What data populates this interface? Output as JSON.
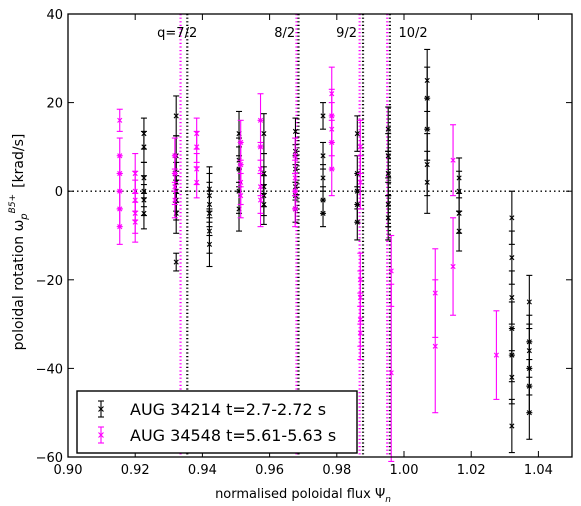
{
  "chart_data": {
    "type": "scatter",
    "xlabel": "normalised poloidal flux Ψ",
    "xlabel_sub": "n",
    "ylabel": "poloidal rotation ω",
    "ylabel_sub": "p",
    "ylabel_sup": "B5+",
    "ylabel_unit": "[krad/s]",
    "xlim": [
      0.9,
      1.05
    ],
    "ylim": [
      -60,
      40
    ],
    "xticks": [
      "0.90",
      "0.92",
      "0.94",
      "0.96",
      "0.98",
      "1.00",
      "1.02",
      "1.04"
    ],
    "xtick_values": [
      0.9,
      0.92,
      0.94,
      0.96,
      0.98,
      1.0,
      1.02,
      1.04
    ],
    "yticks": [
      "−60",
      "−40",
      "−20",
      "0",
      "20",
      "40"
    ],
    "ytick_values": [
      -60,
      -40,
      -20,
      0,
      20,
      40
    ],
    "legend_position": "bottom-left",
    "colors": {
      "black": "#000000",
      "magenta": "#ff00ff"
    },
    "zero_line": 0,
    "q_labels": [
      {
        "text": "q=7/2",
        "x": 0.9325
      },
      {
        "text": "8/2",
        "x": 0.9645
      },
      {
        "text": "9/2",
        "x": 0.9829
      },
      {
        "text": "10/2",
        "x": 1.0027
      }
    ],
    "q_surfaces": [
      {
        "series": "AUG 34548 t=5.61-5.63 s",
        "x": 0.9335
      },
      {
        "series": "AUG 34214 t=2.7-2.72 s",
        "x": 0.9355
      },
      {
        "series": "AUG 34548 t=5.61-5.63 s",
        "x": 0.968
      },
      {
        "series": "AUG 34214 t=2.7-2.72 s",
        "x": 0.9686
      },
      {
        "series": "AUG 34548 t=5.61-5.63 s",
        "x": 0.9868
      },
      {
        "series": "AUG 34214 t=2.7-2.72 s",
        "x": 0.9878
      },
      {
        "series": "AUG 34548 t=5.61-5.63 s",
        "x": 0.995
      },
      {
        "series": "AUG 34214 t=2.7-2.72 s",
        "x": 0.9958
      }
    ],
    "series": [
      {
        "name": "AUG 34214 t=2.7-2.72 s",
        "color": "#000000",
        "points": [
          [
            0.9226,
            13,
            3.5
          ],
          [
            0.9226,
            10,
            3.5
          ],
          [
            0.9226,
            3,
            3.5
          ],
          [
            0.9226,
            0,
            3.5
          ],
          [
            0.9226,
            -2,
            3.5
          ],
          [
            0.9226,
            -5,
            3.5
          ],
          [
            0.9322,
            17,
            4.5
          ],
          [
            0.9322,
            8,
            4.5
          ],
          [
            0.9322,
            2,
            4.5
          ],
          [
            0.9322,
            0,
            4.5
          ],
          [
            0.9322,
            -2,
            4.5
          ],
          [
            0.9322,
            -5,
            4.5
          ],
          [
            0.9322,
            -16,
            2
          ],
          [
            0.9421,
            -3,
            5
          ],
          [
            0.9421,
            -5,
            5
          ],
          [
            0.9421,
            -9,
            5
          ],
          [
            0.9421,
            -12,
            5
          ],
          [
            0.9421,
            -1,
            5
          ],
          [
            0.9421,
            0.5,
            5
          ],
          [
            0.9509,
            13,
            5
          ],
          [
            0.9509,
            7,
            5
          ],
          [
            0.9509,
            5,
            5
          ],
          [
            0.9509,
            0,
            5
          ],
          [
            0.9509,
            -4,
            5
          ],
          [
            0.9583,
            13,
            4.5
          ],
          [
            0.9583,
            4,
            4.5
          ],
          [
            0.9583,
            1,
            4.5
          ],
          [
            0.9583,
            -1,
            4.5
          ],
          [
            0.9583,
            -3,
            4.5
          ],
          [
            0.9677,
            13.5,
            3
          ],
          [
            0.9677,
            9,
            3
          ],
          [
            0.9677,
            5,
            3
          ],
          [
            0.9677,
            1,
            3
          ],
          [
            0.9677,
            -1,
            3
          ],
          [
            0.9677,
            -4,
            3
          ],
          [
            0.9759,
            17,
            3
          ],
          [
            0.9759,
            8,
            3
          ],
          [
            0.9759,
            3,
            3
          ],
          [
            0.9759,
            -2,
            3
          ],
          [
            0.9759,
            -5,
            3
          ],
          [
            0.9861,
            13,
            4
          ],
          [
            0.9861,
            4,
            4
          ],
          [
            0.9861,
            0,
            4
          ],
          [
            0.9861,
            -3,
            4
          ],
          [
            0.9861,
            -7,
            4
          ],
          [
            0.9953,
            14,
            5
          ],
          [
            0.9953,
            8,
            5
          ],
          [
            0.9953,
            4,
            5
          ],
          [
            0.9953,
            -3,
            5
          ],
          [
            0.9953,
            -6,
            5
          ],
          [
            1.0069,
            25,
            7
          ],
          [
            1.0069,
            21,
            7
          ],
          [
            1.0069,
            14,
            7
          ],
          [
            1.0069,
            6,
            7
          ],
          [
            1.0069,
            2,
            7
          ],
          [
            1.0164,
            3,
            4.5
          ],
          [
            1.0164,
            0,
            4.5
          ],
          [
            1.0164,
            -5,
            4.5
          ],
          [
            1.0164,
            -9,
            4.5
          ],
          [
            1.0321,
            -6,
            6
          ],
          [
            1.0321,
            -15,
            6
          ],
          [
            1.0321,
            -24,
            6
          ],
          [
            1.0321,
            -31,
            6
          ],
          [
            1.0321,
            -37,
            6
          ],
          [
            1.0321,
            -42,
            6
          ],
          [
            1.0321,
            -53,
            6
          ],
          [
            1.0373,
            -25,
            6
          ],
          [
            1.0373,
            -34,
            6
          ],
          [
            1.0373,
            -36,
            6
          ],
          [
            1.0373,
            -40,
            6
          ],
          [
            1.0373,
            -44,
            6
          ],
          [
            1.0373,
            -50,
            6
          ]
        ]
      },
      {
        "name": "AUG 34548 t=5.61-5.63 s",
        "color": "#ff00ff",
        "points": [
          [
            0.9154,
            16,
            2.5
          ],
          [
            0.9154,
            8,
            4
          ],
          [
            0.9154,
            4,
            4
          ],
          [
            0.9154,
            0,
            4
          ],
          [
            0.9154,
            -4,
            4
          ],
          [
            0.9154,
            -8,
            4
          ],
          [
            0.92,
            4,
            4.5
          ],
          [
            0.92,
            0,
            4.5
          ],
          [
            0.92,
            -2,
            4.5
          ],
          [
            0.92,
            -5,
            4.5
          ],
          [
            0.92,
            -7,
            4.5
          ],
          [
            0.9318,
            8,
            4
          ],
          [
            0.9318,
            4,
            4
          ],
          [
            0.9318,
            1,
            4
          ],
          [
            0.9318,
            -2,
            4
          ],
          [
            0.9383,
            13,
            3.5
          ],
          [
            0.9383,
            10,
            3.5
          ],
          [
            0.9383,
            5,
            3.5
          ],
          [
            0.9383,
            2,
            3.5
          ],
          [
            0.9514,
            11,
            5
          ],
          [
            0.9514,
            6,
            5
          ],
          [
            0.9514,
            2,
            5
          ],
          [
            0.9514,
            -1,
            5
          ],
          [
            0.9573,
            16,
            6
          ],
          [
            0.9573,
            10,
            6
          ],
          [
            0.9573,
            5,
            6
          ],
          [
            0.9573,
            1,
            6
          ],
          [
            0.9573,
            -2,
            6
          ],
          [
            0.9676,
            8,
            4
          ],
          [
            0.9676,
            3,
            4
          ],
          [
            0.9676,
            0,
            4
          ],
          [
            0.9676,
            -4,
            4
          ],
          [
            0.9785,
            22,
            6
          ],
          [
            0.9785,
            17,
            6
          ],
          [
            0.9785,
            14,
            6
          ],
          [
            0.9785,
            11,
            6
          ],
          [
            0.9785,
            5,
            6
          ],
          [
            0.987,
            10,
            6
          ],
          [
            0.987,
            2,
            6
          ],
          [
            0.987,
            -20,
            6
          ],
          [
            0.987,
            -24,
            6
          ],
          [
            0.987,
            -29,
            6
          ],
          [
            0.987,
            -32,
            6
          ],
          [
            0.9962,
            -18,
            8
          ],
          [
            0.9962,
            -41,
            20
          ],
          [
            1.0093,
            -23,
            10
          ],
          [
            1.0093,
            -35,
            15
          ],
          [
            1.0146,
            7,
            8
          ],
          [
            1.0146,
            -17,
            11
          ],
          [
            1.0275,
            -37,
            10
          ]
        ]
      }
    ]
  }
}
